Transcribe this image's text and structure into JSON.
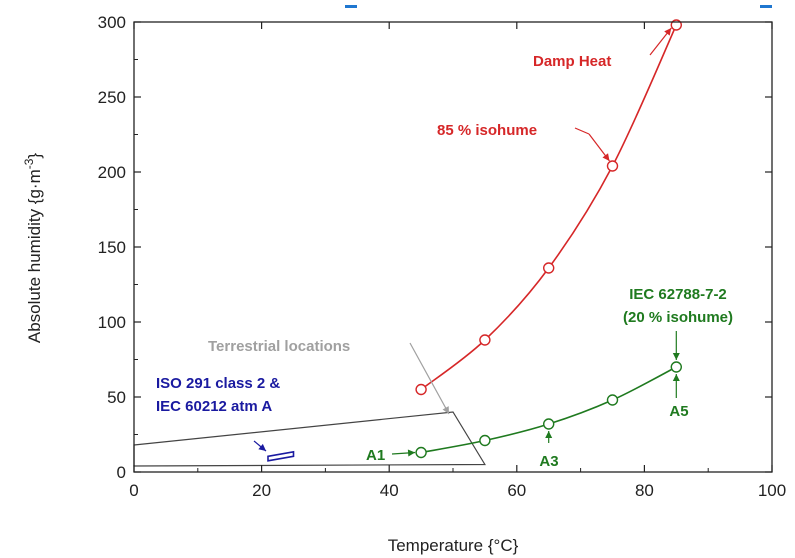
{
  "chart_data": {
    "type": "line",
    "title": "",
    "xlabel": "Temperature {°C}",
    "ylabel": "Absolute humidity {g·m⁻³}",
    "xlim": [
      0,
      100
    ],
    "ylim": [
      0,
      300
    ],
    "xticks": [
      0,
      20,
      40,
      60,
      80,
      100
    ],
    "yticks": [
      0,
      50,
      100,
      150,
      200,
      250,
      300
    ],
    "grid": false,
    "series": [
      {
        "name": "85 % isohume",
        "color": "#d62728",
        "x": [
          45,
          55,
          65,
          75,
          85
        ],
        "y": [
          55,
          88,
          136,
          204,
          298
        ]
      },
      {
        "name": "IEC 62788-7-2 (20 % isohume)",
        "color": "#1f7a1f",
        "x": [
          45,
          55,
          65,
          75,
          85
        ],
        "y": [
          13,
          21,
          32,
          48,
          70
        ]
      }
    ],
    "regions": [
      {
        "name": "Terrestrial locations",
        "color": "#444444",
        "polygon": [
          [
            0,
            18
          ],
          [
            50,
            40
          ],
          [
            55,
            5
          ],
          [
            0,
            4
          ]
        ]
      },
      {
        "name": "ISO 291 class 2 & IEC 60212 atm A",
        "color": "#1a1aa0",
        "polygon": [
          [
            21,
            7.5
          ],
          [
            25,
            10.5
          ],
          [
            25,
            13.5
          ],
          [
            21,
            10.5
          ]
        ]
      }
    ],
    "annotations": {
      "damp_heat": "Damp Heat",
      "isohume85": "85 % isohume",
      "terrestrial": "Terrestrial locations",
      "iso_line1": "ISO 291 class 2 &",
      "iso_line2": "IEC 60212 atm A",
      "iec_line1": "IEC 62788-7-2",
      "iec_line2": "(20 % isohume)",
      "a1": "A1",
      "a3": "A3",
      "a5": "A5"
    },
    "colors": {
      "red": "#d62728",
      "green": "#1f7a1f",
      "blue": "#1a1aa0",
      "gray": "#a0a0a0",
      "banner": "#1f77d0"
    }
  }
}
